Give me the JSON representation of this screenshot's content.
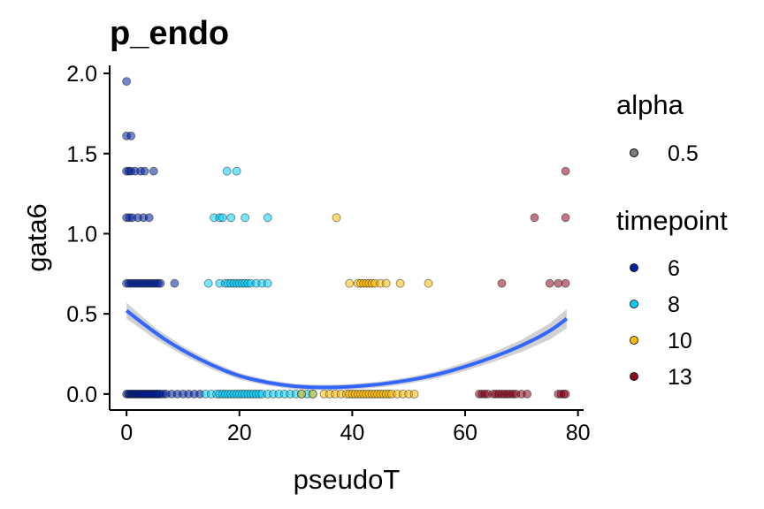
{
  "chart_data": {
    "type": "scatter",
    "title": "p_endo",
    "xlabel": "pseudoT",
    "ylabel": "gata6",
    "xlim": [
      -3,
      81
    ],
    "ylim": [
      -0.1,
      2.05
    ],
    "xticks": [
      0,
      20,
      40,
      60,
      80
    ],
    "yticks": [
      0.0,
      0.5,
      1.0,
      1.5,
      2.0
    ],
    "ytick_labels": [
      "0.0",
      "0.5",
      "1.0",
      "1.5",
      "2.0"
    ],
    "grid": false,
    "legend_position": "right",
    "alpha_legend": {
      "title": "alpha",
      "items": [
        "0.5"
      ],
      "color": "#000000"
    },
    "series": [
      {
        "name": "6",
        "color": "#00209F",
        "points": [
          [
            0,
            0
          ],
          [
            0.3,
            0
          ],
          [
            0.6,
            0
          ],
          [
            0.9,
            0
          ],
          [
            1.2,
            0
          ],
          [
            1.5,
            0
          ],
          [
            1.8,
            0
          ],
          [
            2.1,
            0
          ],
          [
            2.4,
            0
          ],
          [
            2.7,
            0
          ],
          [
            3,
            0
          ],
          [
            3.3,
            0
          ],
          [
            3.6,
            0
          ],
          [
            3.9,
            0
          ],
          [
            4.2,
            0
          ],
          [
            4.5,
            0
          ],
          [
            4.8,
            0
          ],
          [
            5.1,
            0
          ],
          [
            5.4,
            0
          ],
          [
            5.7,
            0
          ],
          [
            6,
            0
          ],
          [
            6.5,
            0
          ],
          [
            7,
            0
          ],
          [
            8,
            0
          ],
          [
            9,
            0
          ],
          [
            10,
            0
          ],
          [
            11,
            0
          ],
          [
            12,
            0
          ],
          [
            13,
            0
          ],
          [
            0,
            0.69
          ],
          [
            0.4,
            0.69
          ],
          [
            0.8,
            0.69
          ],
          [
            1.2,
            0.69
          ],
          [
            1.6,
            0.69
          ],
          [
            2,
            0.69
          ],
          [
            2.4,
            0.69
          ],
          [
            2.8,
            0.69
          ],
          [
            3.2,
            0.69
          ],
          [
            3.6,
            0.69
          ],
          [
            4,
            0.69
          ],
          [
            4.4,
            0.69
          ],
          [
            4.8,
            0.69
          ],
          [
            5.2,
            0.69
          ],
          [
            5.6,
            0.69
          ],
          [
            6,
            0.69
          ],
          [
            8.5,
            0.69
          ],
          [
            0,
            1.1
          ],
          [
            0.5,
            1.1
          ],
          [
            1,
            1.1
          ],
          [
            2,
            1.1
          ],
          [
            3,
            1.1
          ],
          [
            4,
            1.1
          ],
          [
            0,
            1.39
          ],
          [
            0.4,
            1.39
          ],
          [
            0.8,
            1.39
          ],
          [
            1.5,
            1.39
          ],
          [
            2.5,
            1.39
          ],
          [
            3.2,
            1.39
          ],
          [
            4.8,
            1.39
          ],
          [
            0,
            1.61
          ],
          [
            0.8,
            1.61
          ],
          [
            0,
            1.95
          ]
        ]
      },
      {
        "name": "8",
        "color": "#00CFFF",
        "points": [
          [
            14,
            0
          ],
          [
            15,
            0
          ],
          [
            16,
            0
          ],
          [
            16.5,
            0
          ],
          [
            17,
            0
          ],
          [
            17.5,
            0
          ],
          [
            18,
            0
          ],
          [
            18.5,
            0
          ],
          [
            19,
            0
          ],
          [
            19.5,
            0
          ],
          [
            20,
            0
          ],
          [
            20.5,
            0
          ],
          [
            21,
            0
          ],
          [
            21.5,
            0
          ],
          [
            22,
            0
          ],
          [
            22.5,
            0
          ],
          [
            23,
            0
          ],
          [
            23.5,
            0
          ],
          [
            24,
            0
          ],
          [
            25,
            0
          ],
          [
            26,
            0
          ],
          [
            27,
            0
          ],
          [
            28,
            0
          ],
          [
            29,
            0
          ],
          [
            30,
            0
          ],
          [
            31,
            0
          ],
          [
            32,
            0
          ],
          [
            33,
            0
          ],
          [
            14.5,
            0.69
          ],
          [
            16.5,
            0.69
          ],
          [
            17.5,
            0.69
          ],
          [
            18,
            0.69
          ],
          [
            18.5,
            0.69
          ],
          [
            19,
            0.69
          ],
          [
            19.5,
            0.69
          ],
          [
            20,
            0.69
          ],
          [
            20.5,
            0.69
          ],
          [
            21,
            0.69
          ],
          [
            21.5,
            0.69
          ],
          [
            22,
            0.69
          ],
          [
            23,
            0.69
          ],
          [
            24,
            0.69
          ],
          [
            25,
            0.69
          ],
          [
            15.5,
            1.1
          ],
          [
            16.5,
            1.1
          ],
          [
            17,
            1.1
          ],
          [
            18.5,
            1.1
          ],
          [
            21,
            1.1
          ],
          [
            25,
            1.1
          ],
          [
            17.8,
            1.39
          ],
          [
            19.5,
            1.39
          ]
        ]
      },
      {
        "name": "10",
        "color": "#FFBA00",
        "points": [
          [
            31,
            0
          ],
          [
            33,
            0
          ],
          [
            35,
            0
          ],
          [
            36,
            0
          ],
          [
            37,
            0
          ],
          [
            38,
            0
          ],
          [
            39,
            0
          ],
          [
            39.5,
            0
          ],
          [
            40,
            0
          ],
          [
            40.5,
            0
          ],
          [
            41,
            0
          ],
          [
            41.5,
            0
          ],
          [
            42,
            0
          ],
          [
            42.5,
            0
          ],
          [
            43,
            0
          ],
          [
            43.5,
            0
          ],
          [
            44,
            0
          ],
          [
            44.5,
            0
          ],
          [
            45,
            0
          ],
          [
            45.5,
            0
          ],
          [
            46,
            0
          ],
          [
            46.5,
            0
          ],
          [
            47,
            0
          ],
          [
            48,
            0
          ],
          [
            49,
            0
          ],
          [
            50,
            0
          ],
          [
            51,
            0
          ],
          [
            39.5,
            0.69
          ],
          [
            41,
            0.69
          ],
          [
            41.5,
            0.69
          ],
          [
            42,
            0.69
          ],
          [
            42.5,
            0.69
          ],
          [
            43,
            0.69
          ],
          [
            43.5,
            0.69
          ],
          [
            44,
            0.69
          ],
          [
            45,
            0.69
          ],
          [
            46,
            0.69
          ],
          [
            48.5,
            0.69
          ],
          [
            53.5,
            0.69
          ],
          [
            37.2,
            1.1
          ]
        ]
      },
      {
        "name": "13",
        "color": "#8B0A1E",
        "points": [
          [
            62.5,
            0
          ],
          [
            63,
            0
          ],
          [
            63.5,
            0
          ],
          [
            64,
            0
          ],
          [
            65,
            0
          ],
          [
            65.5,
            0
          ],
          [
            66,
            0
          ],
          [
            66.5,
            0
          ],
          [
            67,
            0
          ],
          [
            67.5,
            0
          ],
          [
            68,
            0
          ],
          [
            68.5,
            0
          ],
          [
            69,
            0
          ],
          [
            70,
            0
          ],
          [
            71,
            0
          ],
          [
            76.5,
            0
          ],
          [
            77,
            0
          ],
          [
            77.5,
            0
          ],
          [
            77.8,
            0
          ],
          [
            66.5,
            0.69
          ],
          [
            75,
            0.69
          ],
          [
            76.5,
            0.69
          ],
          [
            77.8,
            0.69
          ],
          [
            72.3,
            1.1
          ],
          [
            77.8,
            1.1
          ],
          [
            77.8,
            1.39
          ]
        ]
      }
    ],
    "smooth": {
      "color": "#3366FF",
      "band_color": "#BDBDBD",
      "x": [
        0,
        5,
        10,
        15,
        20,
        25,
        30,
        35,
        40,
        45,
        50,
        55,
        60,
        65,
        70,
        75,
        78
      ],
      "y": [
        0.52,
        0.38,
        0.27,
        0.18,
        0.11,
        0.07,
        0.045,
        0.04,
        0.045,
        0.06,
        0.085,
        0.12,
        0.17,
        0.23,
        0.3,
        0.39,
        0.47
      ],
      "band_half_width": [
        0.05,
        0.035,
        0.028,
        0.024,
        0.02,
        0.018,
        0.017,
        0.017,
        0.017,
        0.018,
        0.02,
        0.022,
        0.026,
        0.03,
        0.038,
        0.05,
        0.06
      ]
    }
  }
}
